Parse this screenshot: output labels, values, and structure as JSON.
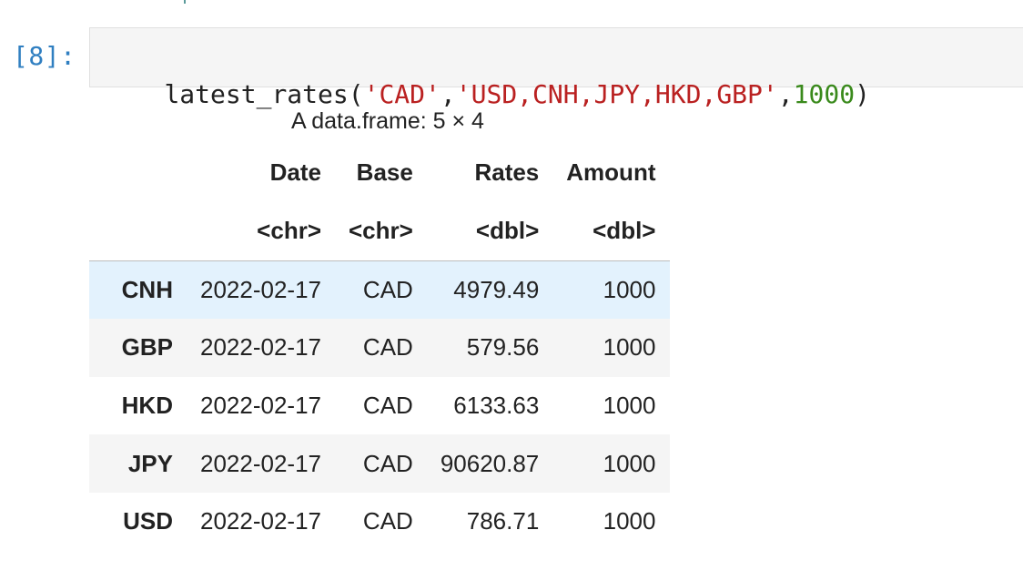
{
  "cell": {
    "prompt": "[8]:",
    "code_tokens": [
      {
        "t": "latest_rates(",
        "k": "plain"
      },
      {
        "t": "'CAD'",
        "k": "str"
      },
      {
        "t": ",",
        "k": "plain"
      },
      {
        "t": "'USD,CNH,JPY,HKD,GBP'",
        "k": "str"
      },
      {
        "t": ",",
        "k": "plain"
      },
      {
        "t": "1000",
        "k": "num"
      },
      {
        "t": ")",
        "k": "plain"
      }
    ]
  },
  "output": {
    "caption": "A data.frame: 5 × 4",
    "columns": [
      "Date",
      "Base",
      "Rates",
      "Amount"
    ],
    "types": [
      "<chr>",
      "<chr>",
      "<dbl>",
      "<dbl>"
    ],
    "rows": [
      {
        "index": "CNH",
        "cells": [
          "2022-02-17",
          "CAD",
          "4979.49",
          "1000"
        ]
      },
      {
        "index": "GBP",
        "cells": [
          "2022-02-17",
          "CAD",
          "579.56",
          "1000"
        ]
      },
      {
        "index": "HKD",
        "cells": [
          "2022-02-17",
          "CAD",
          "6133.63",
          "1000"
        ]
      },
      {
        "index": "JPY",
        "cells": [
          "2022-02-17",
          "CAD",
          "90620.87",
          "1000"
        ]
      },
      {
        "index": "USD",
        "cells": [
          "2022-02-17",
          "CAD",
          "786.71",
          "1000"
        ]
      }
    ]
  },
  "colors": {
    "prompt": "#307fc1",
    "string": "#ba2121",
    "number": "#3a8a1c",
    "row_hover": "#e3f2fd",
    "row_stripe": "#f5f5f5"
  }
}
